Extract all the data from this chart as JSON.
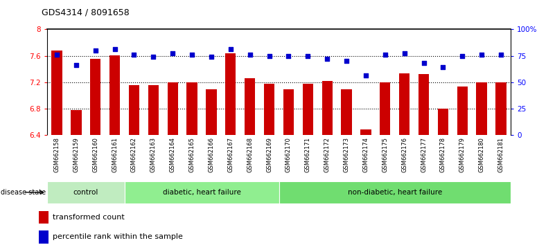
{
  "title": "GDS4314 / 8091658",
  "samples": [
    "GSM662158",
    "GSM662159",
    "GSM662160",
    "GSM662161",
    "GSM662162",
    "GSM662163",
    "GSM662164",
    "GSM662165",
    "GSM662166",
    "GSM662167",
    "GSM662168",
    "GSM662169",
    "GSM662170",
    "GSM662171",
    "GSM662172",
    "GSM662173",
    "GSM662174",
    "GSM662175",
    "GSM662176",
    "GSM662177",
    "GSM662178",
    "GSM662179",
    "GSM662180",
    "GSM662181"
  ],
  "bar_values": [
    7.68,
    6.78,
    7.55,
    7.61,
    7.15,
    7.15,
    7.2,
    7.2,
    7.09,
    7.64,
    7.26,
    7.17,
    7.09,
    7.17,
    7.22,
    7.09,
    6.48,
    7.2,
    7.33,
    7.32,
    6.8,
    7.13,
    7.2,
    7.2
  ],
  "blue_values": [
    76,
    66,
    80,
    81,
    76,
    74,
    77,
    76,
    74,
    81,
    76,
    75,
    75,
    75,
    72,
    70,
    56,
    76,
    77,
    68,
    64,
    75,
    76,
    76
  ],
  "group_boundaries": [
    {
      "label": "control",
      "start": 0,
      "end": 4,
      "color": "#c0ecc0"
    },
    {
      "label": "diabetic, heart failure",
      "start": 4,
      "end": 12,
      "color": "#90ee90"
    },
    {
      "label": "non-diabetic, heart failure",
      "start": 12,
      "end": 24,
      "color": "#70dd70"
    }
  ],
  "ylim_left": [
    6.4,
    8.0
  ],
  "ylim_right": [
    0,
    100
  ],
  "yticks_left": [
    6.4,
    6.8,
    7.2,
    7.6,
    8.0
  ],
  "ytick_labels_left": [
    "6.4",
    "6.8",
    "7.2",
    "7.6",
    "8"
  ],
  "yticks_right": [
    0,
    25,
    50,
    75,
    100
  ],
  "ytick_labels_right": [
    "0",
    "25",
    "50",
    "75",
    "100%"
  ],
  "hlines": [
    6.8,
    7.2,
    7.6
  ],
  "bar_color": "#cc0000",
  "dot_color": "#0000cc",
  "xtick_bg_color": "#c8c8c8",
  "title_fontsize": 9,
  "bar_width": 0.55
}
